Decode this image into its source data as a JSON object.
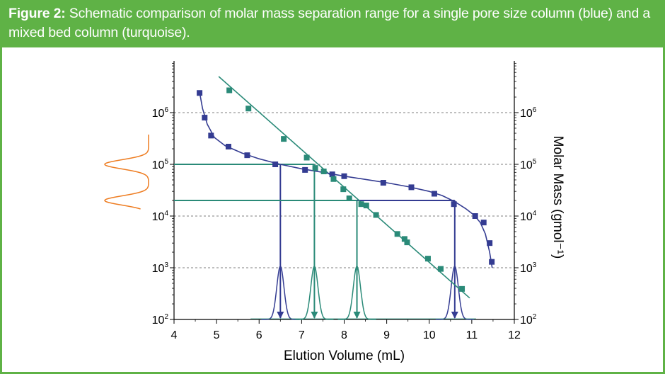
{
  "figure": {
    "label": "Figure 2:",
    "caption": " Schematic comparison of molar mass separation range for a single pore size column (blue) and a mixed bed column (turquoise)."
  },
  "colors": {
    "header_bg": "#5fb246",
    "blue_series": "#343c92",
    "turquoise_series": "#2a8a78",
    "distribution": "#ee7d22"
  },
  "chart_data": {
    "type": "scatter",
    "xlabel": "Elution Volume (mL)",
    "ylabel": "Molar Mass (gmol⁻¹)",
    "xlim": [
      4,
      12
    ],
    "ylim": [
      100,
      10000000
    ],
    "yscale": "log",
    "grid": "dashed horizontal at decades",
    "x_ticks": [
      "4",
      "5",
      "6",
      "7",
      "8",
      "9",
      "10",
      "11",
      "12"
    ],
    "y_ticks": [
      {
        "base": "10",
        "exp": "2",
        "value": 100
      },
      {
        "base": "10",
        "exp": "3",
        "value": 1000
      },
      {
        "base": "10",
        "exp": "4",
        "value": 10000
      },
      {
        "base": "10",
        "exp": "5",
        "value": 100000
      },
      {
        "base": "10",
        "exp": "6",
        "value": 1000000
      }
    ],
    "series": [
      {
        "color": "#343c92",
        "points": [
          [
            4.6,
            2400000
          ],
          [
            4.72,
            800000
          ],
          [
            4.87,
            360000
          ],
          [
            5.28,
            220000
          ],
          [
            5.72,
            150000
          ],
          [
            6.38,
            100000
          ],
          [
            7.08,
            78000
          ],
          [
            7.72,
            64000
          ],
          [
            8.0,
            59000
          ],
          [
            8.92,
            44000
          ],
          [
            9.58,
            36000
          ],
          [
            10.12,
            27000
          ],
          [
            10.58,
            17000
          ],
          [
            11.08,
            10000
          ],
          [
            11.28,
            7500
          ],
          [
            11.42,
            3000
          ],
          [
            11.47,
            1300
          ]
        ],
        "calibration_curve": [
          [
            4.6,
            2500000
          ],
          [
            4.67,
            1200000
          ],
          [
            4.78,
            600000
          ],
          [
            4.95,
            330000
          ],
          [
            5.2,
            230000
          ],
          [
            5.6,
            165000
          ],
          [
            6.0,
            128000
          ],
          [
            6.5,
            100000
          ],
          [
            7.0,
            82000
          ],
          [
            7.5,
            70000
          ],
          [
            8.0,
            59000
          ],
          [
            8.5,
            51000
          ],
          [
            9.0,
            44000
          ],
          [
            9.5,
            37000
          ],
          [
            10.0,
            30000
          ],
          [
            10.3,
            25000
          ],
          [
            10.6,
            19000
          ],
          [
            10.85,
            14000
          ],
          [
            11.05,
            10500
          ],
          [
            11.2,
            7500
          ],
          [
            11.32,
            4500
          ],
          [
            11.42,
            2000
          ],
          [
            11.48,
            1000
          ]
        ],
        "peaks_x": [
          6.5,
          10.6
        ]
      },
      {
        "color": "#2a8a78",
        "points": [
          [
            5.3,
            2700000
          ],
          [
            5.75,
            1200000
          ],
          [
            6.58,
            310000
          ],
          [
            7.12,
            135000
          ],
          [
            7.32,
            85000
          ],
          [
            7.52,
            73000
          ],
          [
            7.75,
            52000
          ],
          [
            7.98,
            33000
          ],
          [
            8.12,
            22000
          ],
          [
            8.4,
            17000
          ],
          [
            8.52,
            16000
          ],
          [
            8.75,
            10500
          ],
          [
            9.25,
            4500
          ],
          [
            9.42,
            3600
          ],
          [
            9.48,
            3100
          ],
          [
            9.97,
            1500
          ],
          [
            10.27,
            950
          ],
          [
            10.77,
            390
          ]
        ],
        "calibration_line": [
          [
            5.05,
            5000000
          ],
          [
            10.95,
            260
          ]
        ],
        "peaks_x": [
          7.3,
          8.3
        ]
      }
    ],
    "markers": [
      {
        "series": 0,
        "y": 100000,
        "x": 6.5
      },
      {
        "series": 0,
        "y": 20000,
        "x": 10.6
      },
      {
        "series": 1,
        "y": 100000,
        "x": 7.3
      },
      {
        "series": 1,
        "y": 20000,
        "x": 8.3
      }
    ],
    "distribution_peaks_y": [
      100000,
      20000
    ]
  }
}
